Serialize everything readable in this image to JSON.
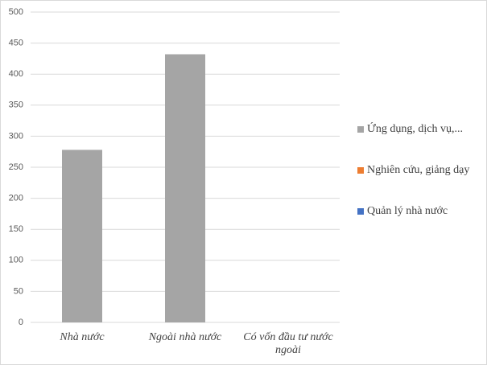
{
  "chart_data": {
    "type": "bar",
    "categories": [
      "Nhà nước",
      "Ngoài nhà nước",
      "Có vốn đầu tư nước ngoài"
    ],
    "series": [
      {
        "name": "Ứng dụng, dịch vụ,...",
        "color": "#a5a5a5",
        "values": [
          278,
          432,
          null
        ]
      },
      {
        "name": "Nghiên cứu, giảng dạy",
        "color": "#ed7d31",
        "values": [
          null,
          null,
          null
        ]
      },
      {
        "name": "Quản lý nhà nước",
        "color": "#4472c4",
        "values": [
          null,
          null,
          null
        ]
      }
    ],
    "ylim": [
      0,
      500
    ],
    "yticks": [
      0,
      50,
      100,
      150,
      200,
      250,
      300,
      350,
      400,
      450,
      500
    ],
    "grid": true,
    "legend": "right"
  }
}
